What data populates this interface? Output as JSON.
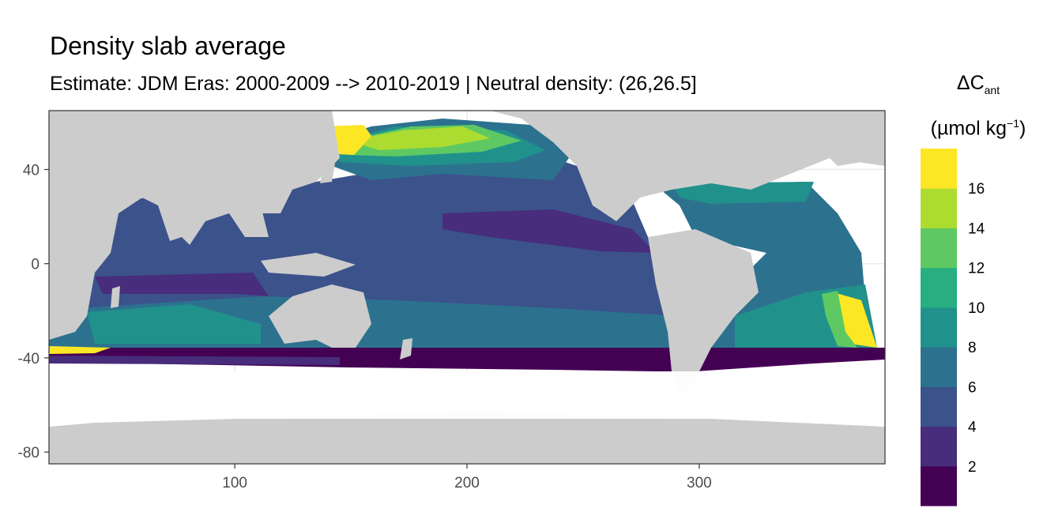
{
  "header": {
    "title": "Density slab average",
    "subtitle": "Estimate: JDM Eras: 2000-2009 --> 2010-2019 | Neutral density: (26,26.5]"
  },
  "map": {
    "type": "heatmap",
    "projection": "longitude-latitude",
    "x_range": [
      20,
      380
    ],
    "y_range": [
      -85,
      65
    ],
    "x_ticks": [
      100,
      200,
      300
    ],
    "y_ticks": [
      40,
      0,
      -40,
      -80
    ],
    "x_tick_labels": [
      "100",
      "200",
      "300"
    ],
    "y_tick_labels": [
      "40",
      "0",
      "-40",
      "-80"
    ],
    "grid": true,
    "land_color": "#cccccc",
    "ocean_nodata_color": "#ffffff",
    "panel_border_color": "#333333",
    "regions": [
      {
        "name": "north-pacific-yellow",
        "value": 17
      },
      {
        "name": "north-pacific-green",
        "value": 14
      },
      {
        "name": "southern-ocean-band",
        "value": 1
      },
      {
        "name": "south-atlantic-high",
        "value": 15
      }
    ]
  },
  "legend": {
    "title_symbol": "ΔC",
    "title_subscript": "ant",
    "unit_prefix": "(µmol kg",
    "unit_superscript": "−1",
    "unit_suffix": ")",
    "placement": "right",
    "bins": [
      {
        "upper": 2,
        "color": "#440154"
      },
      {
        "upper": 4,
        "color": "#472d7b"
      },
      {
        "upper": 6,
        "color": "#3b528b"
      },
      {
        "upper": 8,
        "color": "#2c728e"
      },
      {
        "upper": 10,
        "color": "#21918c"
      },
      {
        "upper": 12,
        "color": "#28ae80"
      },
      {
        "upper": 14,
        "color": "#5ec962"
      },
      {
        "upper": 16,
        "color": "#addc30"
      },
      {
        "upper": 18,
        "color": "#fde725"
      }
    ],
    "labels": [
      "2",
      "4",
      "6",
      "8",
      "10",
      "12",
      "14",
      "16"
    ]
  }
}
